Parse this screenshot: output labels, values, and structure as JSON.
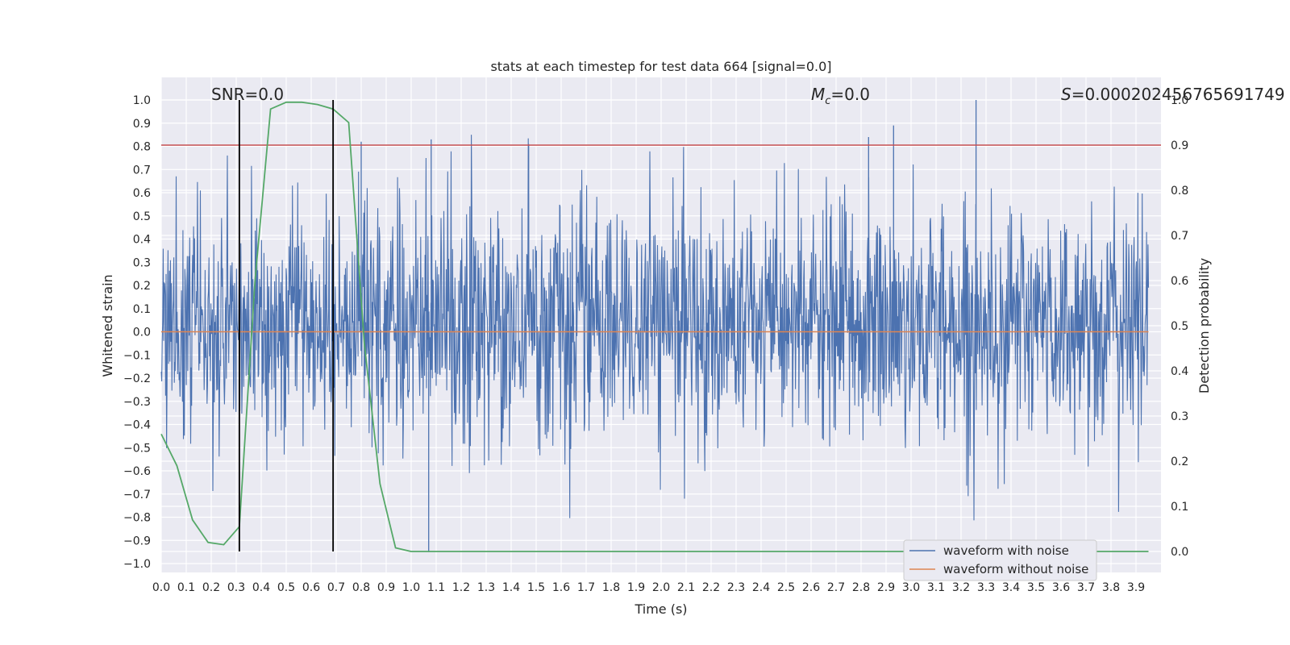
{
  "chart_data": {
    "type": "line",
    "title": "stats at each timestep for test data 664 [signal=0.0]",
    "xlabel": "Time (s)",
    "ylabel_left": "Whitened strain",
    "ylabel_right": "Detection probability",
    "xlim": [
      0.0,
      4.0
    ],
    "ylim_left": [
      -1.0,
      1.0
    ],
    "ylim_right": [
      0.0,
      1.0
    ],
    "x_ticks": [
      "0.0",
      "0.1",
      "0.2",
      "0.3",
      "0.4",
      "0.5",
      "0.6",
      "0.7",
      "0.8",
      "0.9",
      "1.0",
      "1.1",
      "1.2",
      "1.3",
      "1.4",
      "1.5",
      "1.6",
      "1.7",
      "1.8",
      "1.9",
      "2.0",
      "2.1",
      "2.2",
      "2.3",
      "2.4",
      "2.5",
      "2.6",
      "2.7",
      "2.8",
      "2.9",
      "3.0",
      "3.1",
      "3.2",
      "3.3",
      "3.4",
      "3.5",
      "3.6",
      "3.7",
      "3.8",
      "3.9"
    ],
    "y_ticks_left": [
      "1.0",
      "0.9",
      "0.8",
      "0.7",
      "0.6",
      "0.5",
      "0.4",
      "0.3",
      "0.2",
      "0.1",
      "0.0",
      "-0.1",
      "-0.2",
      "-0.3",
      "-0.4",
      "-0.5",
      "-0.6",
      "-0.7",
      "-0.8",
      "-0.9",
      "-1.0"
    ],
    "y_ticks_right": [
      "1.0",
      "0.9",
      "0.8",
      "0.7",
      "0.6",
      "0.5",
      "0.4",
      "0.3",
      "0.2",
      "0.1",
      "0.0"
    ],
    "grid": true,
    "legend_position": "bottom-right",
    "annotations": {
      "snr": "SNR=0.0",
      "mc_symbol": "M",
      "mc_sub": "c",
      "mc_value": "=0.0",
      "s_symbol": "S",
      "s_value": "=0.00020245676569174",
      "s_tail": "9"
    },
    "series": [
      {
        "name": "waveform with noise",
        "axis": "left",
        "color": "#4c72b0",
        "description_values": "noise amplitude ~ within [-0.95, 1.0]",
        "n_points": 2048,
        "peak_max": 1.0,
        "peak_min": -0.95
      },
      {
        "name": "waveform without noise",
        "axis": "left",
        "color": "#dd8452",
        "x": [
          0.0,
          3.95
        ],
        "y": [
          0.0,
          0.0
        ]
      },
      {
        "name": "detection probability",
        "axis": "right",
        "color": "#55a868",
        "x": [
          0.0,
          0.0625,
          0.125,
          0.1875,
          0.25,
          0.3125,
          0.375,
          0.4375,
          0.5,
          0.5625,
          0.625,
          0.6875,
          0.75,
          0.8125,
          0.875,
          0.9375,
          1.0,
          3.95
        ],
        "y": [
          0.26,
          0.19,
          0.07,
          0.02,
          0.015,
          0.055,
          0.6,
          0.98,
          0.995,
          0.995,
          0.99,
          0.98,
          0.95,
          0.46,
          0.15,
          0.008,
          0.0,
          0.0
        ]
      }
    ],
    "reference_lines": {
      "threshold_right": 0.9,
      "threshold_color": "#c44e52",
      "vlines_x": [
        0.3125,
        0.6875
      ],
      "vline_ymax_left": 1.0,
      "vline_ymin_right": 0.0,
      "vline_color": "#000000"
    }
  }
}
